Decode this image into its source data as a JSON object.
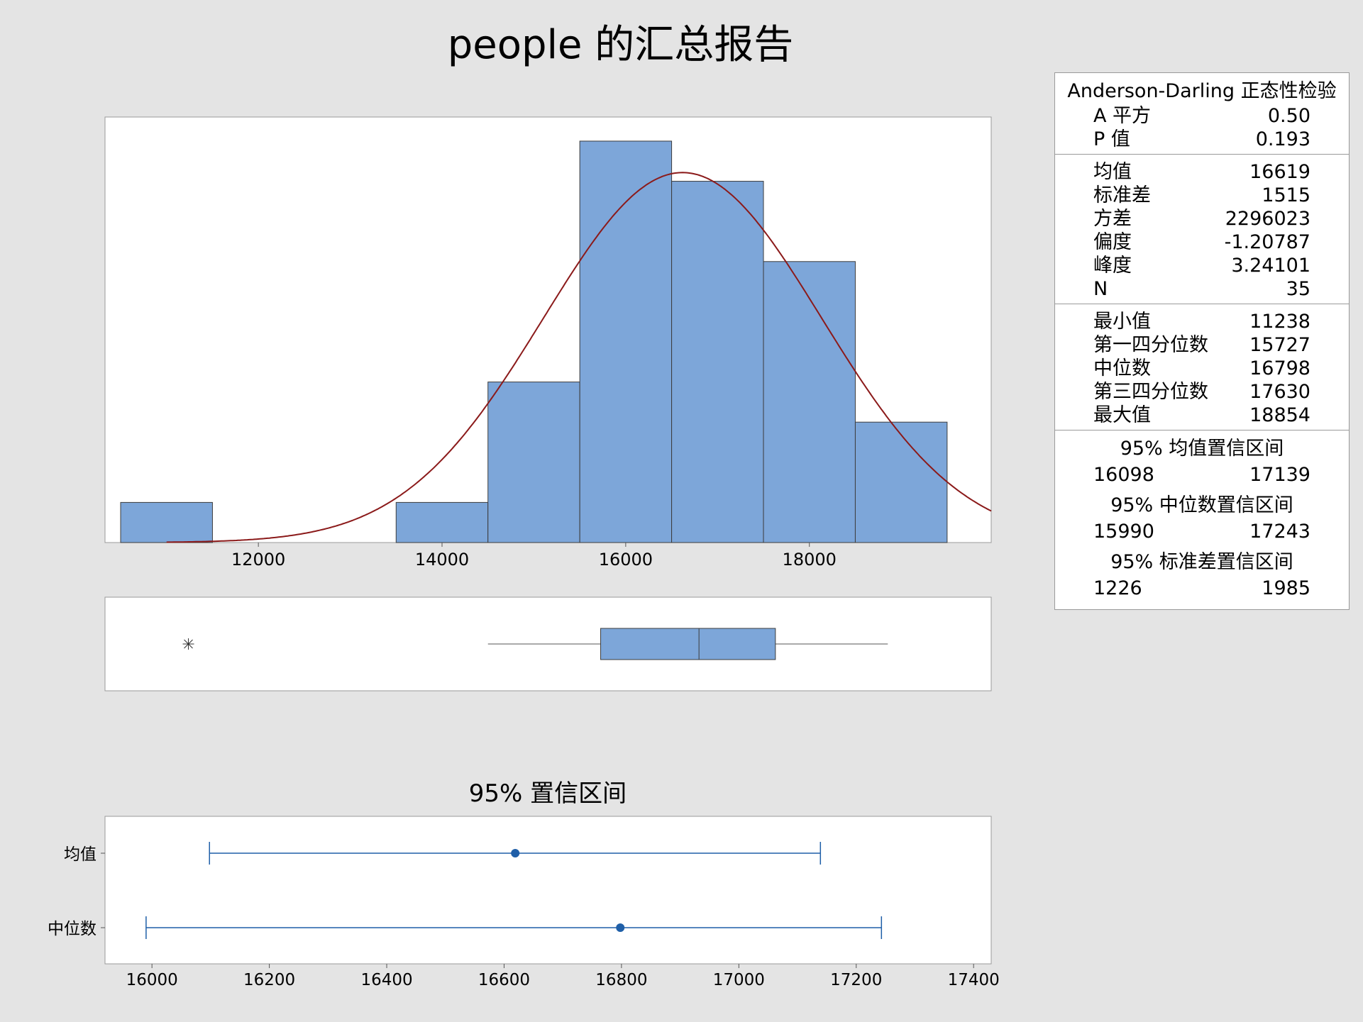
{
  "title": "people 的汇总报告",
  "colors": {
    "bar": "#7da6d9",
    "bar_edge": "#3c3c3c",
    "curve": "#8b1a1a",
    "ci": "#1f5fa8"
  },
  "stats": {
    "ad_header": "Anderson-Darling 正态性检验",
    "ad_rows": [
      {
        "label": "A 平方",
        "value": "0.50"
      },
      {
        "label": "P 值",
        "value": "0.193"
      }
    ],
    "desc_rows": [
      {
        "label": "均值",
        "value": "16619"
      },
      {
        "label": "标准差",
        "value": "1515"
      },
      {
        "label": "方差",
        "value": "2296023"
      },
      {
        "label": "偏度",
        "value": "-1.20787"
      },
      {
        "label": "峰度",
        "value": "3.24101"
      },
      {
        "label": "N",
        "value": "35"
      }
    ],
    "quant_rows": [
      {
        "label": "最小值",
        "value": "11238"
      },
      {
        "label": "第一四分位数",
        "value": "15727"
      },
      {
        "label": "中位数",
        "value": "16798"
      },
      {
        "label": "第三四分位数",
        "value": "17630"
      },
      {
        "label": "最大值",
        "value": "18854"
      }
    ],
    "ci_mean": {
      "header": "95% 均值置信区间",
      "low": "16098",
      "high": "17139"
    },
    "ci_median": {
      "header": "95% 中位数置信区间",
      "low": "15990",
      "high": "17243"
    },
    "ci_std": {
      "header": "95% 标准差置信区间",
      "low": "1226",
      "high": "1985"
    }
  },
  "chart_data": [
    {
      "type": "bar",
      "subtype": "histogram",
      "bin_edges": [
        10500,
        11500,
        12500,
        13500,
        14500,
        15500,
        16500,
        17500,
        18500,
        19500
      ],
      "values": [
        1,
        0,
        0,
        1,
        4,
        10,
        9,
        7,
        3
      ],
      "x_ticks": [
        12000,
        14000,
        16000,
        18000
      ],
      "xlim": [
        10330,
        19980
      ],
      "ylim": [
        0,
        10.6
      ],
      "normal_fit": {
        "mean": 16619,
        "std": 1515,
        "n": 35,
        "bin_width": 1000
      }
    },
    {
      "type": "boxplot",
      "outliers": [
        11238
      ],
      "whisker_low": 14500,
      "q1": 15727,
      "median": 16798,
      "q3": 17630,
      "whisker_high": 18854,
      "xlim": [
        10330,
        19980
      ]
    },
    {
      "type": "interval",
      "title": "95% 置信区间",
      "categories": [
        "均值",
        "中位数"
      ],
      "points": [
        {
          "label": "均值",
          "estimate": 16619,
          "low": 16098,
          "high": 17139
        },
        {
          "label": "中位数",
          "estimate": 16798,
          "low": 15990,
          "high": 17243
        }
      ],
      "x_ticks": [
        16000,
        16200,
        16400,
        16600,
        16800,
        17000,
        17200,
        17400
      ],
      "xlim": [
        15920,
        17430
      ]
    }
  ]
}
